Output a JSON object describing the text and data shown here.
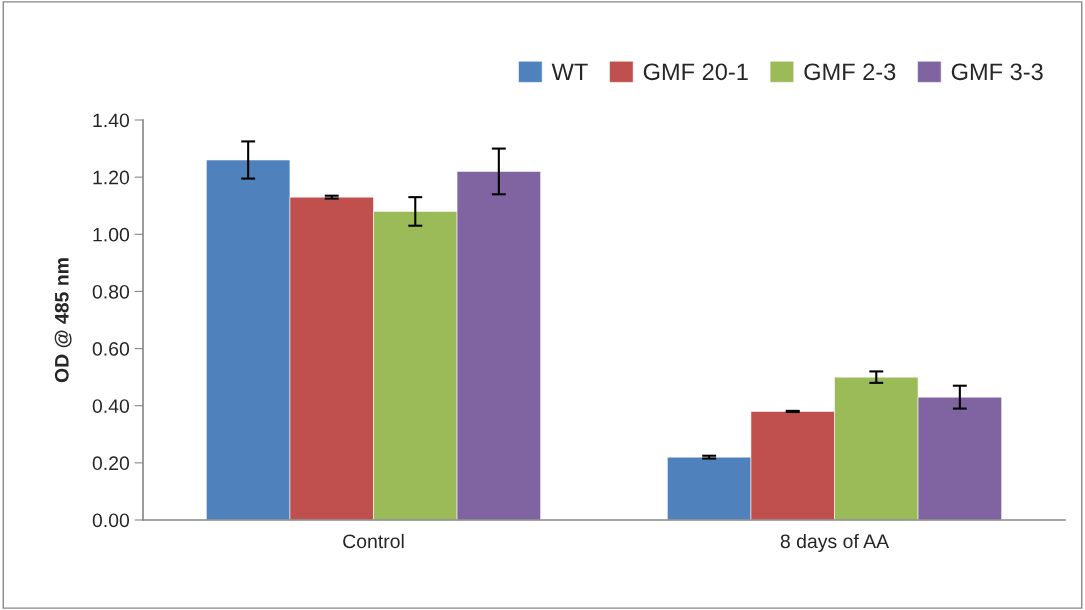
{
  "chart_data": {
    "type": "bar",
    "ylabel": "OD @ 485 nm",
    "categories": [
      "Control",
      "8 days of AA"
    ],
    "series": [
      {
        "name": "WT",
        "color": "#4f81bd",
        "values": [
          1.26,
          0.22
        ],
        "errors": [
          0.065,
          0.005
        ]
      },
      {
        "name": "GMF 20-1",
        "color": "#c0504d",
        "values": [
          1.13,
          0.38
        ],
        "errors": [
          0.005,
          0.002
        ]
      },
      {
        "name": "GMF 2-3",
        "color": "#9bbb59",
        "values": [
          1.08,
          0.5
        ],
        "errors": [
          0.05,
          0.02
        ]
      },
      {
        "name": "GMF 3-3",
        "color": "#8064a2",
        "values": [
          1.22,
          0.43
        ],
        "errors": [
          0.08,
          0.04
        ]
      }
    ],
    "ylim": [
      0,
      1.4
    ],
    "yticks": [
      {
        "value": 0,
        "label": "0.00"
      },
      {
        "value": 0.2,
        "label": "0.20"
      },
      {
        "value": 0.4,
        "label": "0.40"
      },
      {
        "value": 0.6,
        "label": "0.60"
      },
      {
        "value": 0.8,
        "label": "0.80"
      },
      {
        "value": 1.0,
        "label": "1.00"
      },
      {
        "value": 1.2,
        "label": "1.20"
      },
      {
        "value": 1.4,
        "label": "1.40"
      }
    ],
    "grid": false,
    "legend": "top right"
  }
}
